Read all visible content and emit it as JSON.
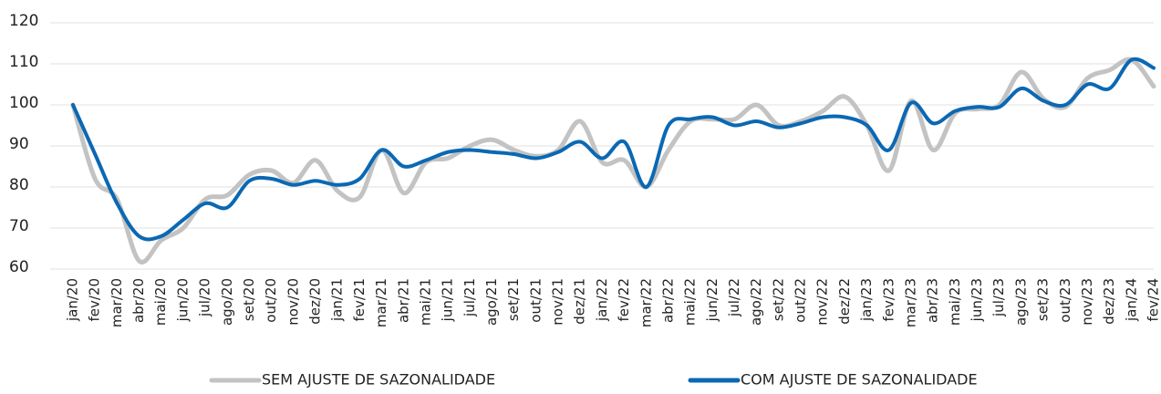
{
  "chart_data": {
    "type": "line",
    "categories": [
      "jan/20",
      "fev/20",
      "mar/20",
      "abr/20",
      "mai/20",
      "jun/20",
      "jul/20",
      "ago/20",
      "set/20",
      "out/20",
      "nov/20",
      "dez/20",
      "jan/21",
      "fev/21",
      "mar/21",
      "abr/21",
      "mai/21",
      "jun/21",
      "jul/21",
      "ago/21",
      "set/21",
      "out/21",
      "nov/21",
      "dez/21",
      "jan/22",
      "fev/22",
      "mar/22",
      "abr/22",
      "mai/22",
      "jun/22",
      "jul/22",
      "ago/22",
      "set/22",
      "out/22",
      "nov/22",
      "dez/22",
      "jan/23",
      "fev/23",
      "mar/23",
      "abr/23",
      "mai/23",
      "jun/23",
      "jul/23",
      "ago/23",
      "set/23",
      "out/23",
      "nov/23",
      "dez/23",
      "jan/24",
      "fev/24"
    ],
    "series": [
      {
        "name": "SEM AJUSTE DE SAZONALIDADE",
        "color": "#c3c3c3",
        "values": [
          100,
          82,
          77,
          62,
          67,
          70,
          77,
          78,
          83,
          84,
          81,
          86.5,
          79,
          77.5,
          89,
          78.5,
          86,
          87,
          90,
          91.5,
          89,
          87.5,
          89,
          96,
          86,
          86.5,
          80,
          89,
          96,
          96.5,
          96.5,
          100,
          95,
          96,
          98.5,
          102,
          95,
          84,
          101,
          89,
          98,
          99,
          100,
          108,
          101.5,
          99.5,
          106.5,
          108.5,
          111,
          104.5
        ]
      },
      {
        "name": "COM AJUSTE DE SAZONALIDADE",
        "color": "#0b68b3",
        "values": [
          100,
          88,
          76,
          68,
          68,
          72,
          76,
          75,
          81.5,
          82,
          80.5,
          81.5,
          80.5,
          82,
          89,
          85,
          86.5,
          88.5,
          89,
          88.5,
          88,
          87,
          88.5,
          91,
          87,
          91,
          80,
          95,
          96.5,
          97,
          95,
          96,
          94.5,
          95.5,
          97,
          97,
          95,
          89,
          100.5,
          95.5,
          98.5,
          99.5,
          99.5,
          104,
          101,
          100,
          105,
          104,
          111,
          109
        ]
      }
    ],
    "ylim": [
      60,
      120
    ],
    "yticks": [
      60,
      70,
      80,
      90,
      100,
      110,
      120
    ],
    "grid": true
  }
}
